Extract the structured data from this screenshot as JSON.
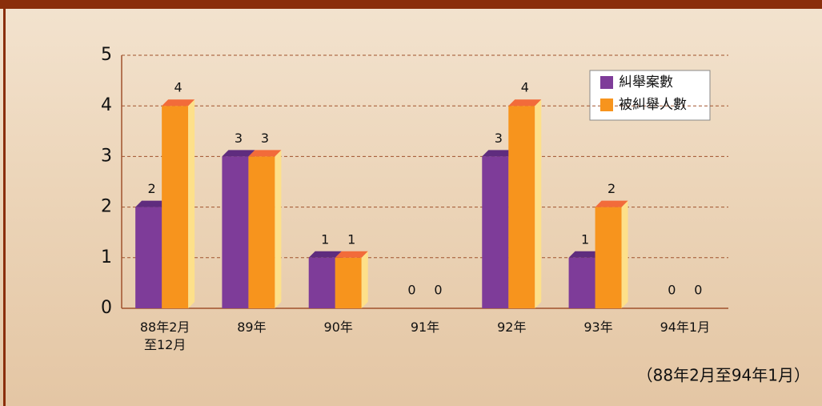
{
  "chart_data": {
    "type": "bar3d",
    "categories": [
      "88年2月\n至12月",
      "89年",
      "90年",
      "91年",
      "92年",
      "93年",
      "94年1月"
    ],
    "series": [
      {
        "name": "糾舉案數",
        "color": "#7e3c99",
        "values": [
          2,
          3,
          1,
          0,
          3,
          1,
          0
        ]
      },
      {
        "name": "被糾舉人數",
        "color": "#f7941d",
        "values": [
          4,
          3,
          1,
          0,
          4,
          2,
          0
        ]
      }
    ],
    "ylim": [
      0,
      5
    ],
    "yticks": [
      0,
      1,
      2,
      3,
      4,
      5
    ],
    "grid": true,
    "legend": "upper right",
    "annotation": "（88年2月至94年1月）"
  }
}
